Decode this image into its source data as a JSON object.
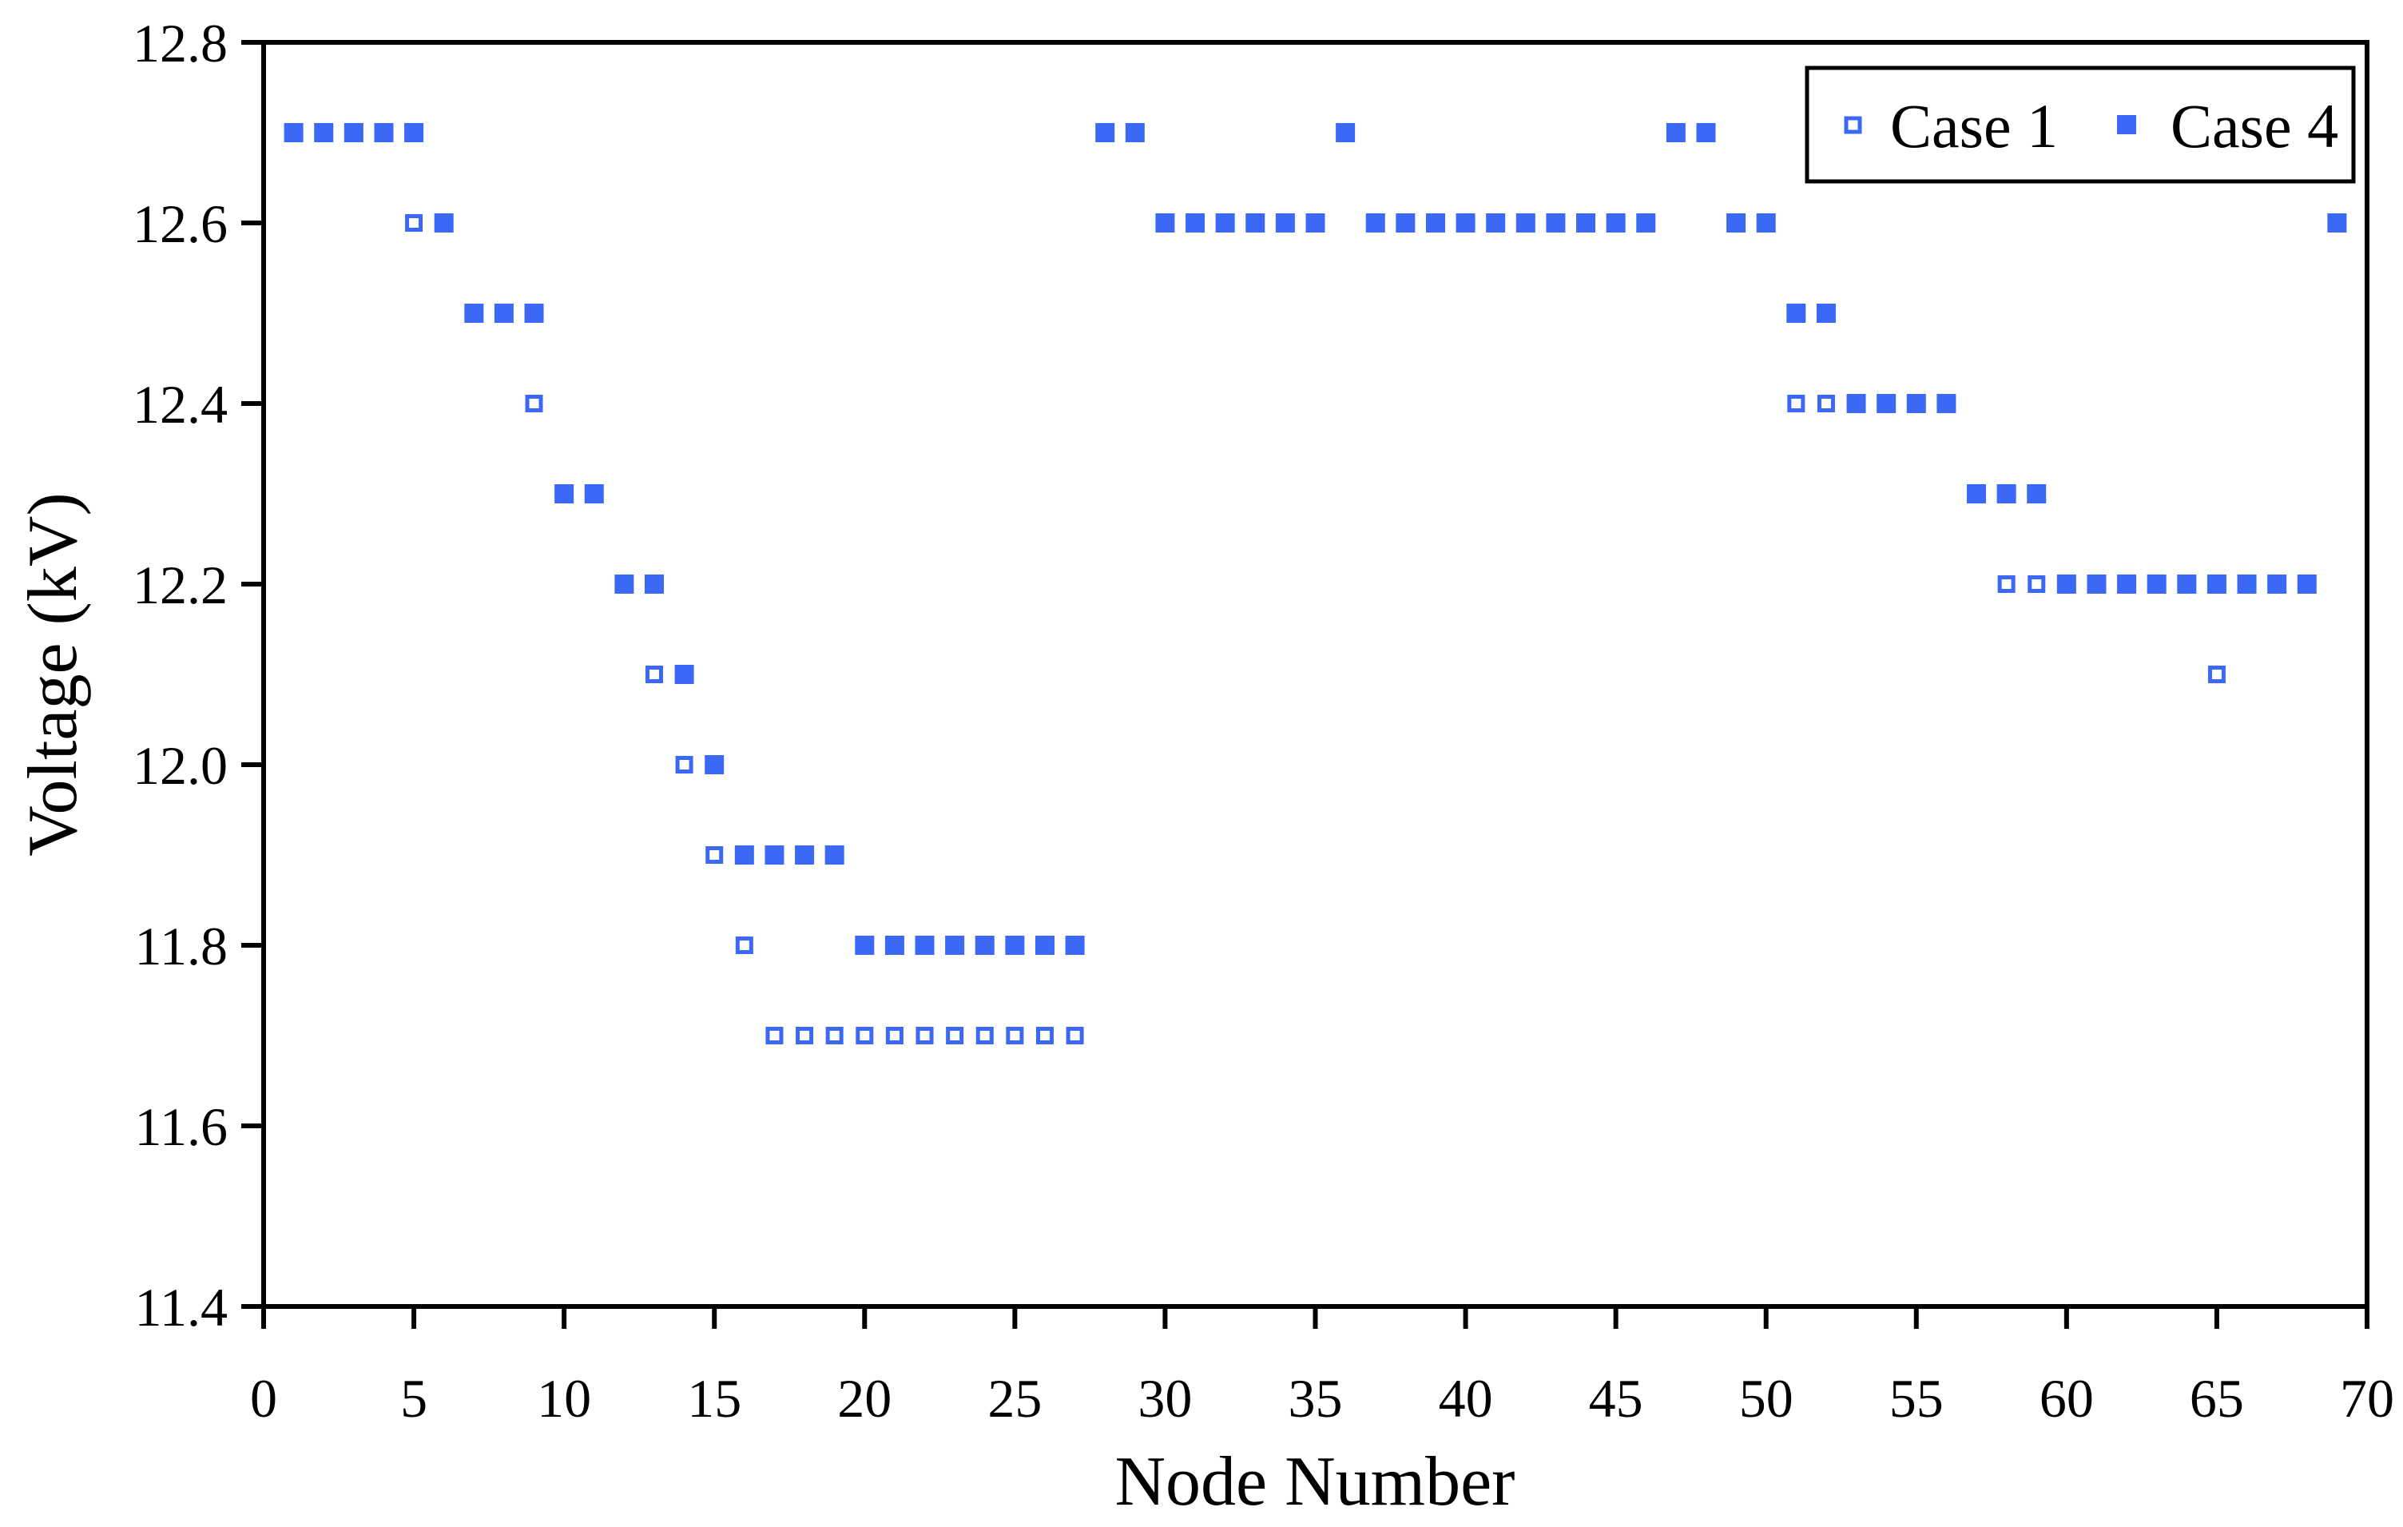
{
  "figure": {
    "background_color": "#ffffff",
    "frame_color": "#000000",
    "accent_color": "#3b68f5"
  },
  "chart_data": {
    "type": "scatter",
    "title": "",
    "xlabel": "Node Number",
    "ylabel": "Voltage (kV)",
    "xlim": [
      0,
      70
    ],
    "ylim": [
      11.4,
      12.8
    ],
    "grid": false,
    "legend_position": "top-right",
    "x_ticks": [
      0,
      5,
      10,
      15,
      20,
      25,
      30,
      35,
      40,
      45,
      50,
      55,
      60,
      65,
      70
    ],
    "x_tick_labels": [
      "0",
      "5",
      "10",
      "15",
      "20",
      "25",
      "30",
      "35",
      "40",
      "45",
      "50",
      "55",
      "60",
      "65",
      "70"
    ],
    "y_ticks": [
      11.4,
      11.6,
      11.8,
      12.0,
      12.2,
      12.4,
      12.6,
      12.8
    ],
    "y_tick_labels": [
      "11.4",
      "11.6",
      "11.8",
      "12.0",
      "12.2",
      "12.4",
      "12.6",
      "12.8"
    ],
    "series": [
      {
        "name": "Case 1",
        "marker": "open-square",
        "color": "#3b68f5",
        "x": [
          1,
          2,
          3,
          4,
          5,
          6,
          7,
          8,
          9,
          10,
          11,
          12,
          13,
          14,
          15,
          16,
          17,
          18,
          19,
          20,
          21,
          22,
          23,
          24,
          25,
          26,
          27,
          28,
          29,
          30,
          31,
          32,
          33,
          34,
          35,
          36,
          37,
          38,
          39,
          40,
          41,
          42,
          43,
          44,
          45,
          46,
          47,
          48,
          49,
          50,
          51,
          52,
          53,
          54,
          55,
          56,
          57,
          58,
          59,
          60,
          61,
          62,
          63,
          64,
          65,
          66,
          67,
          68,
          69
        ],
        "y": [
          12.7,
          12.7,
          12.7,
          12.7,
          12.6,
          12.6,
          12.5,
          12.5,
          12.4,
          12.3,
          12.3,
          12.2,
          12.1,
          12.0,
          11.9,
          11.8,
          11.7,
          11.7,
          11.7,
          11.7,
          11.7,
          11.7,
          11.7,
          11.7,
          11.7,
          11.7,
          11.7,
          12.7,
          12.7,
          12.6,
          12.6,
          12.6,
          12.6,
          12.6,
          12.6,
          12.7,
          12.6,
          12.6,
          12.6,
          12.6,
          12.6,
          12.6,
          12.6,
          12.6,
          12.6,
          12.6,
          12.7,
          12.7,
          12.6,
          12.6,
          12.4,
          12.4,
          12.4,
          12.4,
          12.4,
          12.4,
          12.3,
          12.2,
          12.2,
          12.2,
          12.2,
          12.2,
          12.2,
          12.2,
          12.1,
          12.2,
          12.2,
          12.2,
          12.6
        ]
      },
      {
        "name": "Case 4",
        "marker": "filled-square",
        "color": "#3b68f5",
        "x": [
          1,
          2,
          3,
          4,
          5,
          6,
          7,
          8,
          9,
          10,
          11,
          12,
          13,
          14,
          15,
          16,
          17,
          18,
          19,
          20,
          21,
          22,
          23,
          24,
          25,
          26,
          27,
          28,
          29,
          30,
          31,
          32,
          33,
          34,
          35,
          36,
          37,
          38,
          39,
          40,
          41,
          42,
          43,
          44,
          45,
          46,
          47,
          48,
          49,
          50,
          51,
          52,
          53,
          54,
          55,
          56,
          57,
          58,
          59,
          60,
          61,
          62,
          63,
          64,
          65,
          66,
          67,
          68,
          69
        ],
        "y": [
          12.7,
          12.7,
          12.7,
          12.7,
          12.7,
          12.6,
          12.5,
          12.5,
          12.5,
          12.3,
          12.3,
          12.2,
          12.2,
          12.1,
          12.0,
          11.9,
          11.9,
          11.9,
          11.9,
          11.8,
          11.8,
          11.8,
          11.8,
          11.8,
          11.8,
          11.8,
          11.8,
          12.7,
          12.7,
          12.6,
          12.6,
          12.6,
          12.6,
          12.6,
          12.6,
          12.7,
          12.6,
          12.6,
          12.6,
          12.6,
          12.6,
          12.6,
          12.6,
          12.6,
          12.6,
          12.6,
          12.7,
          12.7,
          12.6,
          12.6,
          12.5,
          12.5,
          12.4,
          12.4,
          12.4,
          12.4,
          12.3,
          12.3,
          12.3,
          12.2,
          12.2,
          12.2,
          12.2,
          12.2,
          12.2,
          12.2,
          12.2,
          12.2,
          12.6
        ]
      }
    ],
    "legend": [
      {
        "label": "Case 1",
        "marker": "open-square"
      },
      {
        "label": "Case 4",
        "marker": "filled-square"
      }
    ]
  }
}
